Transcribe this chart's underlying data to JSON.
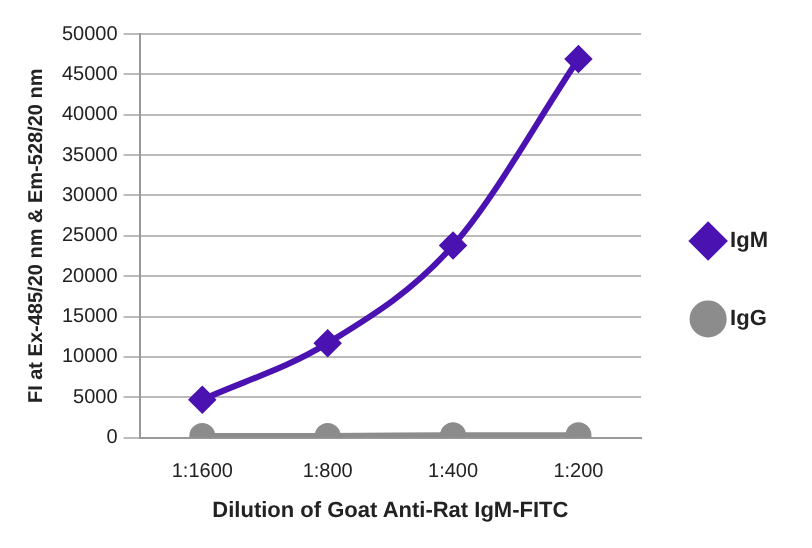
{
  "chart_data": {
    "type": "line",
    "xlabel": "Dilution of Goat Anti-Rat IgM-FITC",
    "ylabel": "FI at Ex-485/20 nm & Em-528/20 nm",
    "categories": [
      "1:1600",
      "1:800",
      "1:400",
      "1:200"
    ],
    "series": [
      {
        "name": "IgM",
        "color": "#4a12b0",
        "marker": "diamond",
        "values": [
          4700,
          11700,
          23800,
          46900
        ]
      },
      {
        "name": "IgG",
        "color": "#8c8c8c",
        "marker": "circle",
        "values": [
          200,
          200,
          300,
          300
        ]
      }
    ],
    "ylim": [
      0,
      50000
    ],
    "yticks": [
      0,
      5000,
      10000,
      15000,
      20000,
      25000,
      30000,
      35000,
      40000,
      45000,
      50000
    ],
    "grid": "y",
    "legend": "right"
  }
}
